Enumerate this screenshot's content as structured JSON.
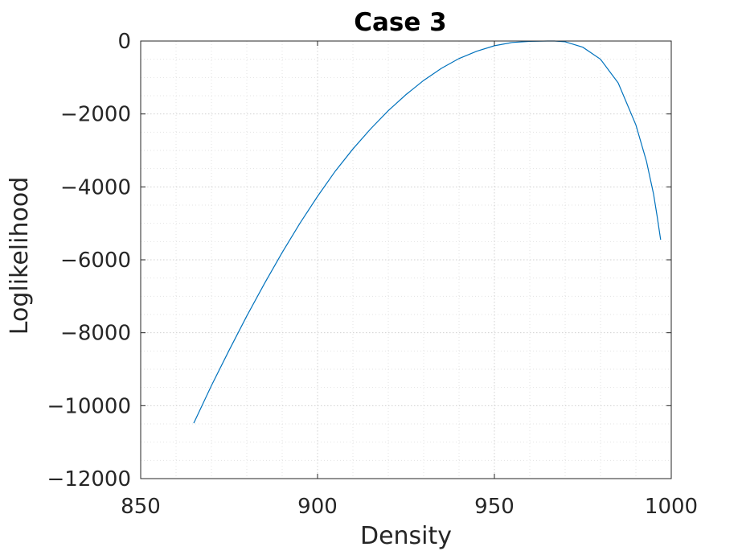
{
  "chart_data": {
    "type": "line",
    "title": "Case 3",
    "xlabel": "Density",
    "ylabel": "Loglikelihood",
    "xlim": [
      850,
      1000
    ],
    "ylim": [
      -12000,
      0
    ],
    "x_ticks": [
      850,
      900,
      950,
      1000
    ],
    "y_ticks": [
      0,
      -2000,
      -4000,
      -6000,
      -8000,
      -10000,
      -12000
    ],
    "x_tick_labels": [
      "850",
      "900",
      "950",
      "1000"
    ],
    "y_tick_labels": [
      "0",
      "−2000",
      "−4000",
      "−6000",
      "−8000",
      "−10000",
      "−12000"
    ],
    "grid": true,
    "minor_grid": true,
    "series": [
      {
        "color": "#0072BD",
        "x": [
          865,
          870,
          875,
          880,
          885,
          890,
          895,
          900,
          905,
          910,
          915,
          920,
          925,
          930,
          935,
          940,
          945,
          950,
          955,
          960,
          965,
          967,
          970,
          975,
          980,
          985,
          990,
          993,
          995,
          996,
          997
        ],
        "y": [
          -10480,
          -9450,
          -8480,
          -7540,
          -6650,
          -5800,
          -5000,
          -4260,
          -3570,
          -2960,
          -2410,
          -1910,
          -1470,
          -1080,
          -750,
          -480,
          -280,
          -130,
          -40,
          -10,
          0,
          0,
          -20,
          -170,
          -500,
          -1150,
          -2300,
          -3300,
          -4200,
          -4800,
          -5450
        ]
      }
    ]
  }
}
